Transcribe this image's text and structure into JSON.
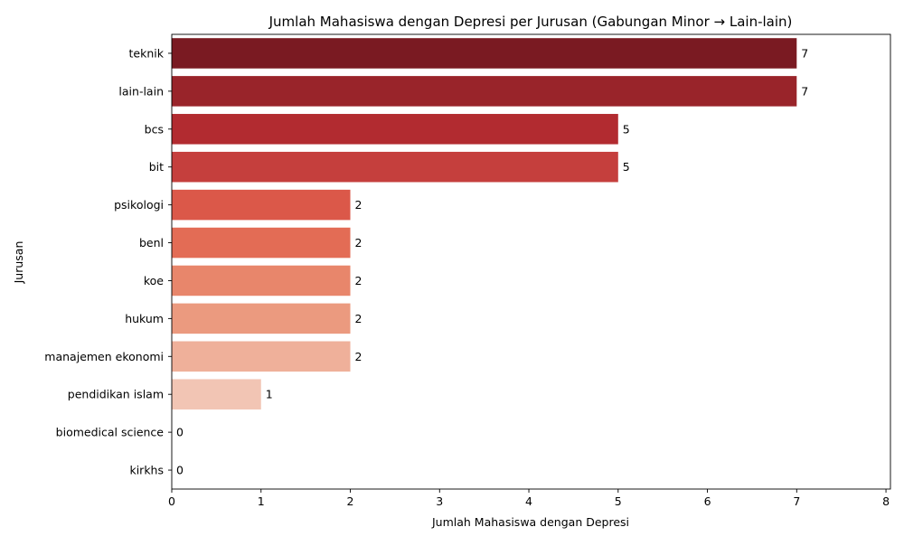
{
  "chart_data": {
    "type": "bar",
    "orientation": "horizontal",
    "title": "Jumlah Mahasiswa dengan Depresi per Jurusan (Gabungan Minor → Lain-lain)",
    "xlabel": "Jumlah Mahasiswa dengan Depresi",
    "ylabel": "Jurusan",
    "categories": [
      "teknik",
      "lain-lain",
      "bcs",
      "bit",
      "psikologi",
      "benl",
      "koe",
      "hukum",
      "manajemen ekonomi",
      "pendidikan islam",
      "biomedical science",
      "kirkhs"
    ],
    "values": [
      7,
      7,
      5,
      5,
      2,
      2,
      2,
      2,
      2,
      1,
      0,
      0
    ],
    "colors": [
      "#7a1a22",
      "#99242a",
      "#b22b30",
      "#c53f3d",
      "#db5849",
      "#e36c55",
      "#e8866b",
      "#eb9a7f",
      "#efb09a",
      "#f2c5b4",
      "#f6d9cc",
      "#f9ebe3"
    ],
    "xlim": [
      0,
      8.05
    ],
    "xticks": [
      0,
      1,
      2,
      3,
      4,
      5,
      6,
      7,
      8
    ],
    "data_labels": true,
    "grid": false,
    "legend": "none"
  }
}
